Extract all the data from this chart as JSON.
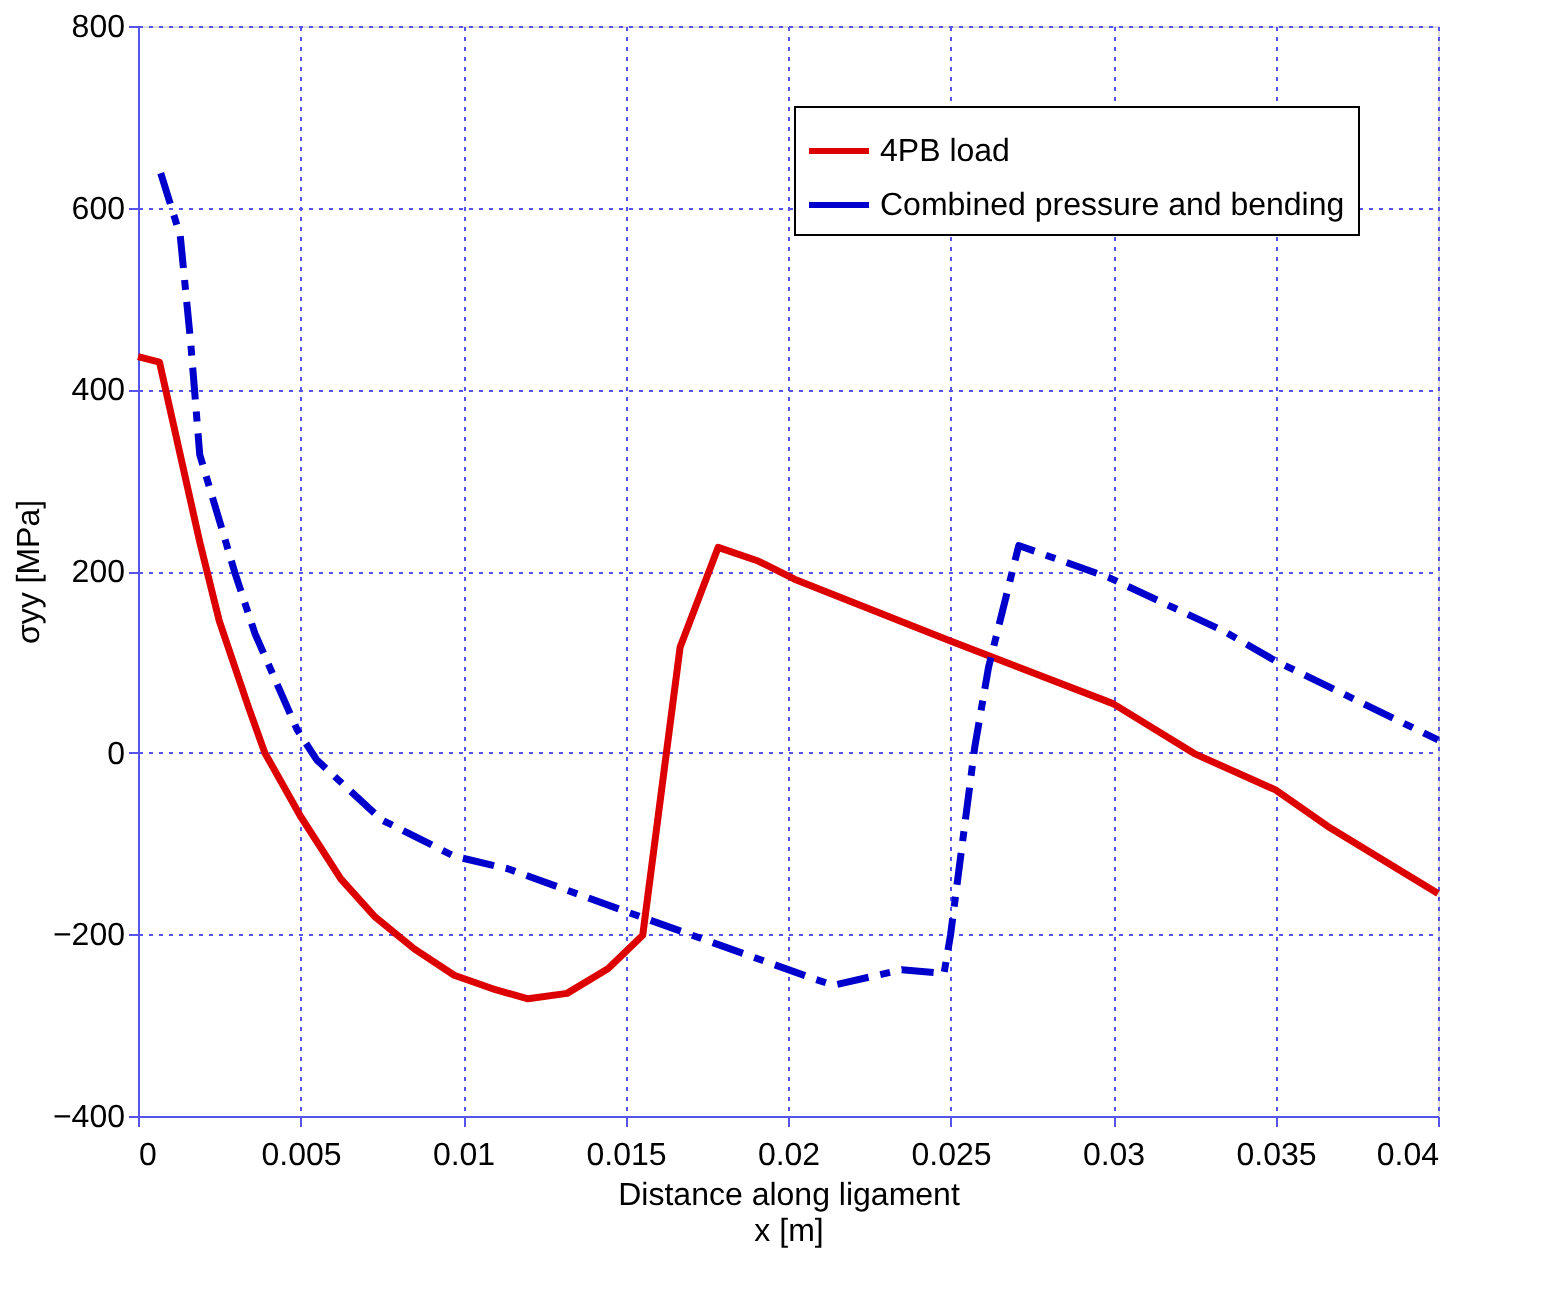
{
  "chart_data": {
    "type": "line",
    "xlabel": "Distance along ligament\nx [m]",
    "ylabel": "σyy [MPa]",
    "xlim": [
      0,
      0.04
    ],
    "ylim": [
      -400,
      800
    ],
    "xticks": [
      0,
      0.005,
      0.01,
      0.015,
      0.02,
      0.025,
      0.03,
      0.035,
      0.04
    ],
    "yticks": [
      -400,
      -200,
      0,
      200,
      400,
      600,
      800
    ],
    "grid": true,
    "legend": "top right",
    "marker": "none",
    "series": [
      {
        "name": "4PB load",
        "color": "#dd0000",
        "line_style": "solid",
        "x": [
          0,
          0.00066,
          0.0019,
          0.0025,
          0.0034,
          0.0039,
          0.005,
          0.00624,
          0.00727,
          0.0085,
          0.00973,
          0.011,
          0.012,
          0.0132,
          0.01446,
          0.01553,
          0.01668,
          0.01785,
          0.01908,
          0.0202,
          0.025,
          0.03,
          0.0325,
          0.035,
          0.0366,
          0.04
        ],
        "values": [
          436,
          430,
          232,
          145,
          50,
          0,
          -70,
          -139,
          -180,
          -216,
          -245,
          -261,
          -271,
          -265,
          -238,
          -201,
          116,
          226,
          211,
          191,
          123,
          54,
          -1,
          -41,
          -81,
          -155
        ]
      },
      {
        "name": "Combined pressure and bending",
        "color": "#0000cc",
        "line_style": "dashed",
        "x": [
          0.0007,
          0.0013,
          0.00162,
          0.0019,
          0.003,
          0.0036,
          0.0049,
          0.0055,
          0.0075,
          0.00973,
          0.0114,
          0.0151,
          0.0208,
          0.0214,
          0.0235,
          0.0248,
          0.025,
          0.02575,
          0.02617,
          0.0271,
          0.02986,
          0.0334,
          0.035,
          0.04
        ],
        "values": [
          638,
          569,
          452,
          328,
          196,
          131,
          25,
          -8,
          -74,
          -114,
          -128,
          -176,
          -249,
          -256,
          -239,
          -243,
          -201,
          7,
          94,
          228,
          193,
          134,
          101,
          14
        ]
      }
    ]
  }
}
